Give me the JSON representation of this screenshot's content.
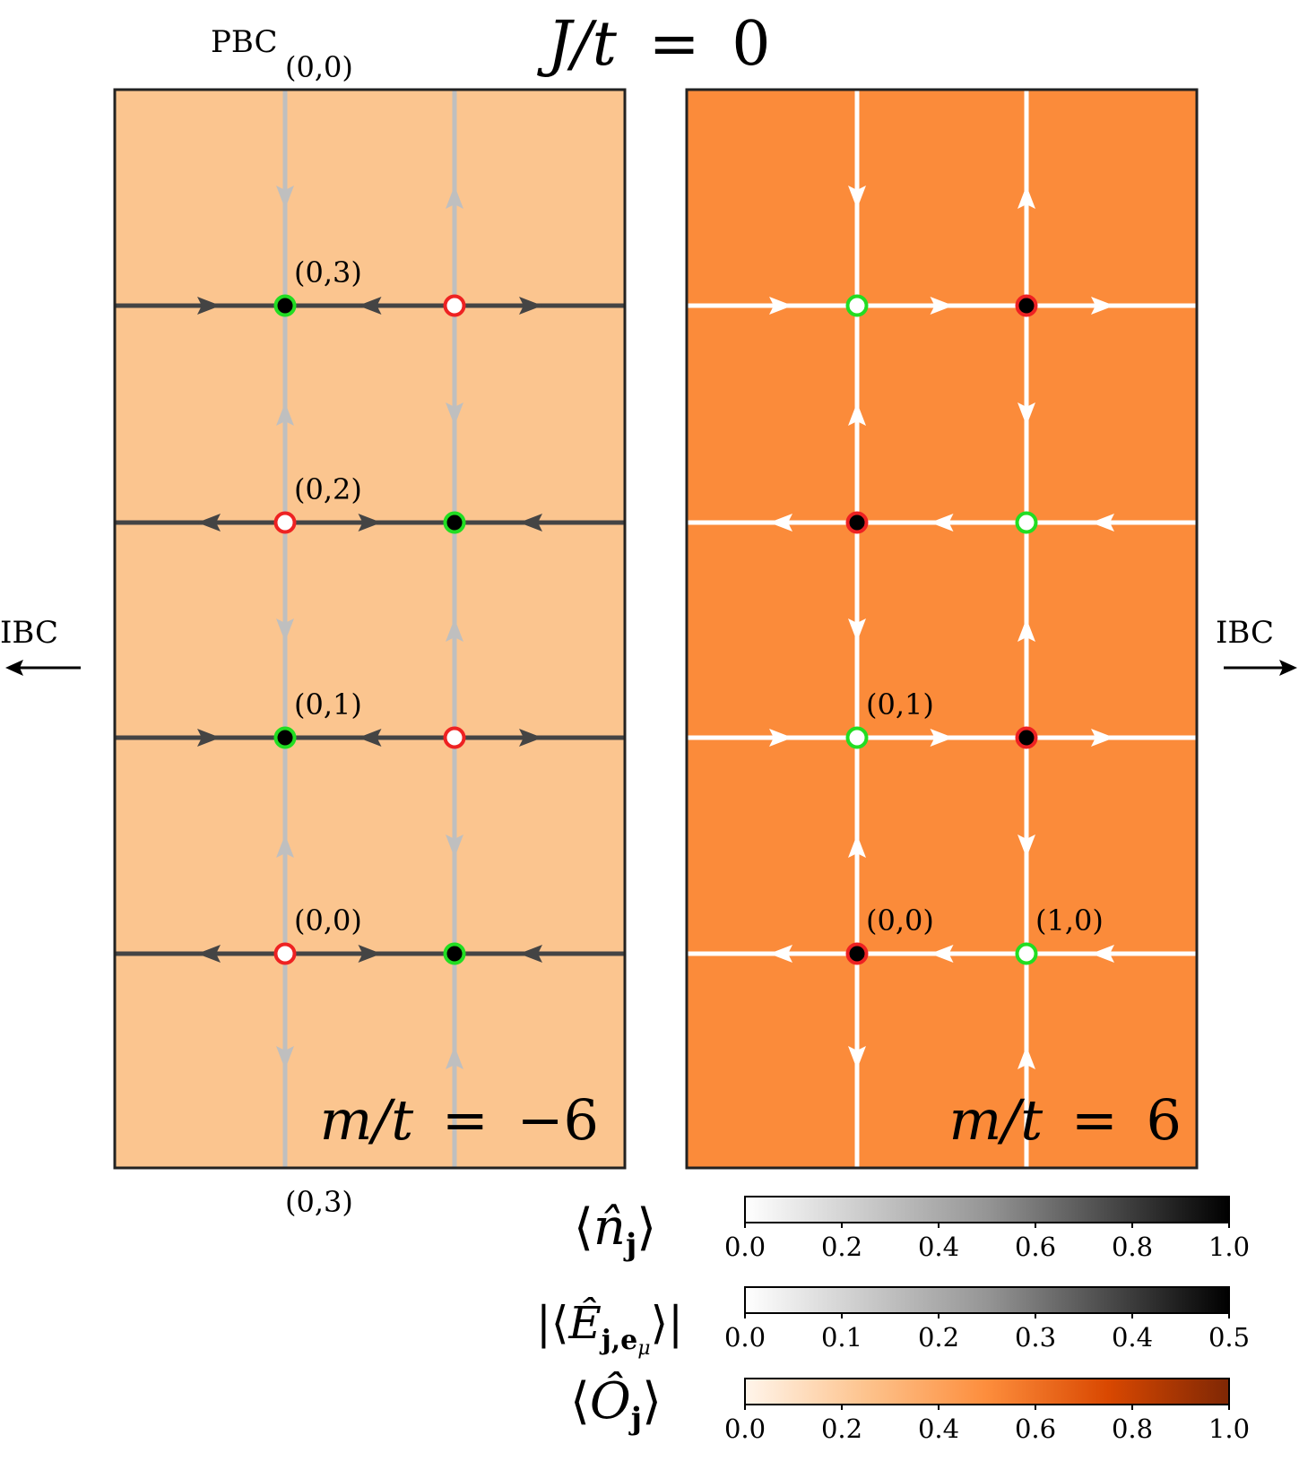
{
  "title": "J/t = 0",
  "title_parts": {
    "lhs": "J/t",
    "eq": "=",
    "rhs": "0"
  },
  "boundary_labels": {
    "pbc": "PBC",
    "left_ibc": "IBC",
    "right_ibc": "IBC"
  },
  "colors": {
    "left_bg": "#fbc58f",
    "right_bg": "#fb8b3a",
    "frame": "#222222",
    "left_horizontal_link": "#444444",
    "left_vertical_link": "#bfbfbf",
    "right_link": "#ffffff",
    "occupied_site_fill": "#000000",
    "empty_site_fill": "#ffffff",
    "green_ring": "#22dd22",
    "red_ring": "#ee2222"
  },
  "panels": [
    {
      "id": "left",
      "mass_label": {
        "lhs": "m/t",
        "eq": "=",
        "rhs": "−6"
      },
      "top_boundary_coord": "(0,0)",
      "bottom_boundary_coord": "(0,3)",
      "site_labels": [
        {
          "text": "(0,3)",
          "col": 0,
          "row": 3
        },
        {
          "text": "(0,2)",
          "col": 0,
          "row": 2
        },
        {
          "text": "(0,1)",
          "col": 0,
          "row": 1
        },
        {
          "text": "(0,0)",
          "col": 0,
          "row": 0
        }
      ],
      "sites": [
        {
          "col": 0,
          "row": 3,
          "occupied": 1,
          "ring": "green"
        },
        {
          "col": 1,
          "row": 3,
          "occupied": 0,
          "ring": "red"
        },
        {
          "col": 0,
          "row": 2,
          "occupied": 0,
          "ring": "red"
        },
        {
          "col": 1,
          "row": 2,
          "occupied": 1,
          "ring": "green"
        },
        {
          "col": 0,
          "row": 1,
          "occupied": 1,
          "ring": "green"
        },
        {
          "col": 1,
          "row": 1,
          "occupied": 0,
          "ring": "red"
        },
        {
          "col": 0,
          "row": 0,
          "occupied": 0,
          "ring": "red"
        },
        {
          "col": 1,
          "row": 0,
          "occupied": 1,
          "ring": "green"
        }
      ],
      "horizontal_link_directions": {
        "row3": [
          "right",
          "left",
          "right"
        ],
        "row2": [
          "left",
          "right",
          "left"
        ],
        "row1": [
          "right",
          "left",
          "right"
        ],
        "row0": [
          "left",
          "right",
          "left"
        ]
      },
      "vertical_link_directions": {
        "col0": [
          "down",
          "up",
          "down",
          "up",
          "down"
        ],
        "col1": [
          "up",
          "down",
          "up",
          "down",
          "up"
        ]
      }
    },
    {
      "id": "right",
      "mass_label": {
        "lhs": "m/t",
        "eq": "=",
        "rhs": "6"
      },
      "site_labels": [
        {
          "text": "(0,1)",
          "col": 0,
          "row": 1
        },
        {
          "text": "(0,0)",
          "col": 0,
          "row": 0
        },
        {
          "text": "(1,0)",
          "col": 1,
          "row": 0
        }
      ],
      "sites": [
        {
          "col": 0,
          "row": 3,
          "occupied": 0,
          "ring": "green"
        },
        {
          "col": 1,
          "row": 3,
          "occupied": 1,
          "ring": "red"
        },
        {
          "col": 0,
          "row": 2,
          "occupied": 1,
          "ring": "red"
        },
        {
          "col": 1,
          "row": 2,
          "occupied": 0,
          "ring": "green"
        },
        {
          "col": 0,
          "row": 1,
          "occupied": 0,
          "ring": "green"
        },
        {
          "col": 1,
          "row": 1,
          "occupied": 1,
          "ring": "red"
        },
        {
          "col": 0,
          "row": 0,
          "occupied": 1,
          "ring": "red"
        },
        {
          "col": 1,
          "row": 0,
          "occupied": 0,
          "ring": "green"
        }
      ],
      "horizontal_link_directions": {
        "row3": [
          "right",
          "right",
          "right"
        ],
        "row2": [
          "left",
          "left",
          "left"
        ],
        "row1": [
          "right",
          "right",
          "right"
        ],
        "row0": [
          "left",
          "left",
          "left"
        ]
      },
      "vertical_link_directions": {
        "col0": [
          "down",
          "up",
          "down",
          "up",
          "down"
        ],
        "col1": [
          "up",
          "down",
          "up",
          "down",
          "up"
        ]
      }
    }
  ],
  "colorbars": [
    {
      "label": "⟨n̂_j⟩",
      "label_parts": {
        "open": "⟨",
        "main": "n̂",
        "sub": "j",
        "close": "⟩"
      },
      "cmap": "greys",
      "range": [
        0.0,
        1.0
      ],
      "ticks": [
        "0.0",
        "0.2",
        "0.4",
        "0.6",
        "0.8",
        "1.0"
      ]
    },
    {
      "label": "|⟨Ê_j,e_μ⟩|",
      "label_parts": {
        "bar": "|",
        "open": "⟨",
        "main": "Ê",
        "sub": "j,e",
        "subsub": "μ",
        "close": "⟩"
      },
      "cmap": "greys",
      "range": [
        0.0,
        0.5
      ],
      "ticks": [
        "0.0",
        "0.1",
        "0.2",
        "0.3",
        "0.4",
        "0.5"
      ]
    },
    {
      "label": "⟨Ô_j⟩",
      "label_parts": {
        "open": "⟨",
        "main": "Ô",
        "sub": "j",
        "close": "⟩"
      },
      "cmap": "oranges",
      "range": [
        0.0,
        1.0
      ],
      "ticks": [
        "0.0",
        "0.2",
        "0.4",
        "0.6",
        "0.8",
        "1.0"
      ]
    }
  ]
}
